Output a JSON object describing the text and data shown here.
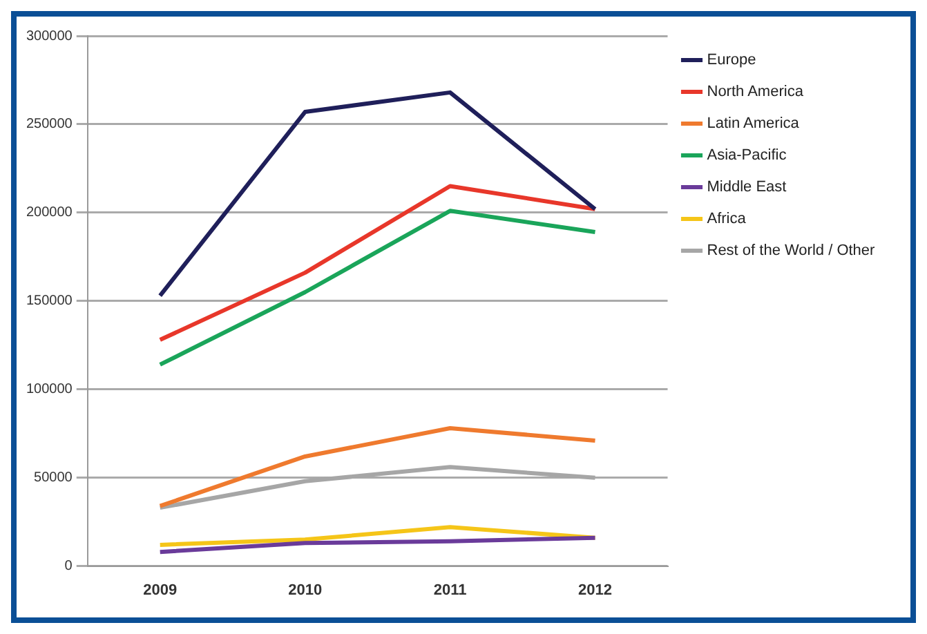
{
  "chart_data": {
    "type": "line",
    "categories": [
      "2009",
      "2010",
      "2011",
      "2012"
    ],
    "series": [
      {
        "name": "Europe",
        "color": "#1f1f5a",
        "values": [
          153000,
          257000,
          268000,
          202000
        ]
      },
      {
        "name": "North America",
        "color": "#e8372a",
        "values": [
          128000,
          166000,
          215000,
          202000
        ]
      },
      {
        "name": "Latin America",
        "color": "#ef7a2e",
        "values": [
          34000,
          62000,
          78000,
          71000
        ]
      },
      {
        "name": "Asia-Pacific",
        "color": "#1aa55a",
        "values": [
          114000,
          155000,
          201000,
          189000
        ]
      },
      {
        "name": "Middle East",
        "color": "#6a3b9a",
        "values": [
          8000,
          13000,
          14000,
          16000
        ]
      },
      {
        "name": "Africa",
        "color": "#f5c518",
        "values": [
          12000,
          15000,
          22000,
          16000
        ]
      },
      {
        "name": "Rest of the World / Other",
        "color": "#a6a6a6",
        "values": [
          33000,
          48000,
          56000,
          50000
        ]
      }
    ],
    "ylim": [
      0,
      300000
    ],
    "yticks": [
      0,
      50000,
      100000,
      150000,
      200000,
      250000,
      300000
    ],
    "grid": "y",
    "legend": "right",
    "marker": "none",
    "line_style": "solid"
  }
}
